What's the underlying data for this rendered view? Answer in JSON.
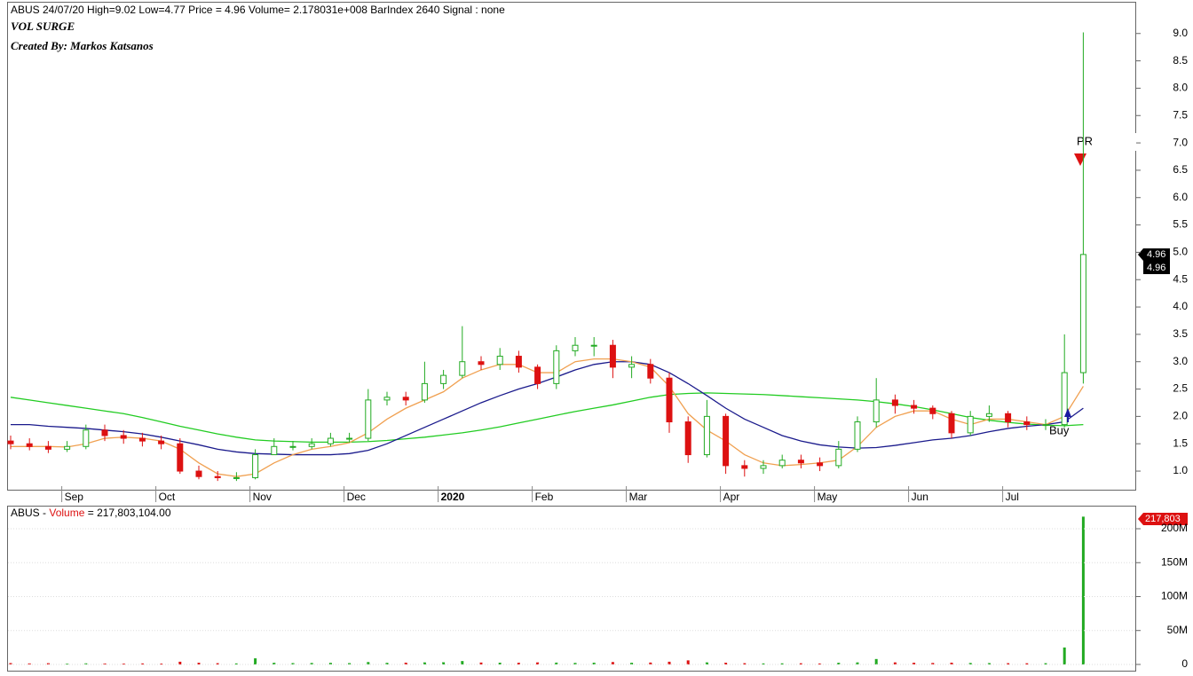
{
  "chart_data": {
    "type": "candlestick",
    "header": "ABUS 24/07/20 High=9.02 Low=4.77 Price = 4.96 Volume= 2.178031e+008 BarIndex 2640 Signal : none",
    "title": "VOL SURGE",
    "subtitle": "Created By: Markos Katsanos",
    "categories": [
      null,
      null,
      null,
      "Sep",
      null,
      null,
      null,
      null,
      "Oct",
      null,
      null,
      null,
      null,
      "Nov",
      null,
      null,
      null,
      null,
      "Dec",
      null,
      null,
      null,
      null,
      "2020",
      null,
      null,
      null,
      null,
      "Feb",
      null,
      null,
      null,
      null,
      "Mar",
      null,
      null,
      null,
      null,
      "Apr",
      null,
      null,
      null,
      null,
      "May",
      null,
      null,
      null,
      null,
      "Jun",
      null,
      null,
      null,
      null,
      "Jul",
      null,
      null,
      null,
      null
    ],
    "open": [
      1.55,
      1.5,
      1.45,
      1.4,
      1.45,
      1.75,
      1.65,
      1.6,
      1.55,
      1.5,
      1.0,
      0.9,
      0.88,
      0.88,
      1.3,
      1.45,
      1.45,
      1.5,
      1.6,
      1.6,
      2.3,
      2.35,
      2.3,
      2.6,
      2.75,
      3.0,
      2.95,
      3.1,
      2.9,
      2.6,
      3.2,
      3.3,
      3.3,
      2.9,
      2.95,
      2.7,
      1.9,
      1.3,
      2.0,
      1.1,
      1.05,
      1.1,
      1.2,
      1.15,
      1.1,
      1.4,
      1.9,
      2.3,
      2.2,
      2.15,
      2.05,
      1.7,
      2.0,
      2.05,
      1.9,
      1.85,
      1.85,
      2.8
    ],
    "high": [
      1.65,
      1.6,
      1.55,
      1.55,
      1.85,
      1.85,
      1.75,
      1.7,
      1.65,
      1.6,
      1.1,
      1.0,
      0.98,
      1.4,
      1.6,
      1.55,
      1.6,
      1.7,
      1.7,
      2.5,
      2.45,
      2.45,
      3.0,
      2.85,
      3.65,
      3.1,
      3.25,
      3.2,
      2.95,
      3.3,
      3.45,
      3.45,
      3.4,
      3.1,
      3.05,
      2.8,
      2.0,
      2.3,
      2.05,
      1.2,
      1.2,
      1.3,
      1.3,
      1.25,
      1.55,
      2.0,
      2.7,
      2.4,
      2.3,
      2.2,
      2.1,
      2.1,
      2.2,
      2.1,
      2.0,
      1.95,
      3.5,
      9.02
    ],
    "low": [
      1.4,
      1.38,
      1.33,
      1.35,
      1.4,
      1.55,
      1.5,
      1.45,
      1.4,
      0.95,
      0.85,
      0.82,
      0.82,
      0.85,
      1.3,
      1.38,
      1.4,
      1.45,
      1.52,
      1.55,
      2.2,
      2.2,
      2.25,
      2.5,
      2.7,
      2.85,
      2.85,
      2.8,
      2.5,
      2.5,
      3.1,
      3.1,
      2.7,
      2.7,
      2.6,
      1.7,
      1.15,
      1.25,
      0.95,
      0.9,
      0.95,
      1.05,
      1.05,
      1.0,
      1.05,
      1.35,
      1.8,
      2.05,
      2.05,
      1.95,
      1.6,
      1.65,
      1.9,
      1.8,
      1.75,
      1.75,
      1.8,
      2.6
    ],
    "close": [
      1.5,
      1.45,
      1.4,
      1.45,
      1.75,
      1.65,
      1.6,
      1.55,
      1.5,
      1.0,
      0.9,
      0.88,
      0.88,
      1.3,
      1.45,
      1.45,
      1.5,
      1.6,
      1.6,
      2.3,
      2.35,
      2.3,
      2.6,
      2.75,
      3.0,
      2.95,
      3.1,
      2.9,
      2.6,
      3.2,
      3.3,
      3.3,
      2.9,
      2.95,
      2.7,
      1.9,
      1.3,
      2.0,
      1.1,
      1.05,
      1.1,
      1.2,
      1.15,
      1.1,
      1.4,
      1.9,
      2.3,
      2.2,
      2.15,
      2.05,
      1.7,
      2.0,
      2.05,
      1.9,
      1.85,
      1.85,
      2.8,
      4.96
    ],
    "up_color": "#22aa22",
    "down_color": "#dd1111",
    "lines": [
      {
        "color": "#22cc22",
        "values": [
          2.35,
          2.3,
          2.25,
          2.2,
          2.15,
          2.1,
          2.05,
          1.98,
          1.9,
          1.82,
          1.75,
          1.68,
          1.62,
          1.57,
          1.55,
          1.54,
          1.53,
          1.53,
          1.53,
          1.54,
          1.56,
          1.59,
          1.62,
          1.66,
          1.7,
          1.75,
          1.81,
          1.88,
          1.95,
          2.02,
          2.09,
          2.15,
          2.21,
          2.28,
          2.35,
          2.4,
          2.42,
          2.43,
          2.42,
          2.41,
          2.4,
          2.38,
          2.36,
          2.34,
          2.32,
          2.3,
          2.27,
          2.23,
          2.18,
          2.12,
          2.05,
          1.98,
          1.93,
          1.89,
          1.86,
          1.84,
          1.83,
          1.85
        ]
      },
      {
        "color": "#1a1a8c",
        "values": [
          1.85,
          1.85,
          1.82,
          1.8,
          1.78,
          1.75,
          1.72,
          1.68,
          1.62,
          1.55,
          1.48,
          1.4,
          1.35,
          1.32,
          1.31,
          1.3,
          1.3,
          1.3,
          1.32,
          1.38,
          1.5,
          1.65,
          1.8,
          1.95,
          2.1,
          2.25,
          2.38,
          2.5,
          2.6,
          2.72,
          2.85,
          2.95,
          3.0,
          3.0,
          2.95,
          2.8,
          2.6,
          2.38,
          2.15,
          1.95,
          1.8,
          1.65,
          1.55,
          1.48,
          1.44,
          1.42,
          1.43,
          1.47,
          1.52,
          1.57,
          1.6,
          1.65,
          1.72,
          1.78,
          1.82,
          1.85,
          1.9,
          2.15
        ]
      },
      {
        "color": "#f0a050",
        "values": [
          1.45,
          1.45,
          1.45,
          1.44,
          1.5,
          1.6,
          1.62,
          1.6,
          1.55,
          1.4,
          1.15,
          0.95,
          0.9,
          0.95,
          1.15,
          1.3,
          1.4,
          1.45,
          1.52,
          1.7,
          1.95,
          2.15,
          2.3,
          2.45,
          2.7,
          2.85,
          2.95,
          2.95,
          2.8,
          2.8,
          3.0,
          3.05,
          3.05,
          3.0,
          2.9,
          2.55,
          2.05,
          1.75,
          1.55,
          1.3,
          1.15,
          1.1,
          1.12,
          1.15,
          1.2,
          1.45,
          1.8,
          2.0,
          2.1,
          2.1,
          1.95,
          1.85,
          1.95,
          1.95,
          1.9,
          1.85,
          2.0,
          2.55
        ]
      }
    ],
    "ylim": [
      0.66,
      9.58
    ],
    "yticks": [
      {
        "value": 1,
        "label": "1.0"
      },
      1.5,
      {
        "value": 2,
        "label": "2.0"
      },
      2.5,
      {
        "value": 3,
        "label": "3.0"
      },
      3.5,
      {
        "value": 4,
        "label": "4.0"
      },
      4.5,
      {
        "value": 5,
        "label": "5.0"
      },
      5.5,
      {
        "value": 6,
        "label": "6.0"
      },
      6.5,
      {
        "value": 7,
        "label": "7.0"
      },
      7.5,
      {
        "value": 8,
        "label": "8.0"
      },
      8.5,
      {
        "value": 9,
        "label": "9.0"
      }
    ],
    "price_labels": [
      "4.96",
      "4.96"
    ],
    "annotations": {
      "profit": "PROFIT TA",
      "buy": "Buy"
    },
    "volume": {
      "header": [
        "ABUS -",
        "Volume",
        "= 217,803,104.00"
      ],
      "values": [
        2000000,
        1500000,
        1800000,
        1200000,
        1600000,
        1400000,
        1300000,
        1500000,
        1200000,
        4000000,
        2500000,
        1800000,
        1500000,
        9000000,
        2500000,
        2000000,
        2200000,
        2400000,
        2000000,
        3500000,
        2400000,
        2600000,
        3000000,
        3200000,
        5000000,
        2800000,
        2600000,
        2500000,
        3000000,
        2700000,
        2300000,
        2600000,
        3500000,
        2500000,
        2800000,
        4000000,
        6000000,
        3000000,
        2500000,
        1800000,
        1500000,
        1600000,
        1700000,
        1400000,
        2500000,
        3000000,
        8000000,
        3000000,
        2500000,
        2200000,
        2600000,
        2200000,
        2000000,
        1800000,
        1700000,
        1800000,
        25000000,
        217803104
      ],
      "value_label": "217,803",
      "ylim": [
        -9200000,
        234000000
      ],
      "yticks": [
        0,
        {
          "value": 50000000,
          "label": "50M"
        },
        {
          "value": 100000000,
          "label": "100M"
        },
        {
          "value": 150000000,
          "label": "150M"
        },
        {
          "value": 200000000,
          "label": "200M"
        }
      ]
    }
  }
}
